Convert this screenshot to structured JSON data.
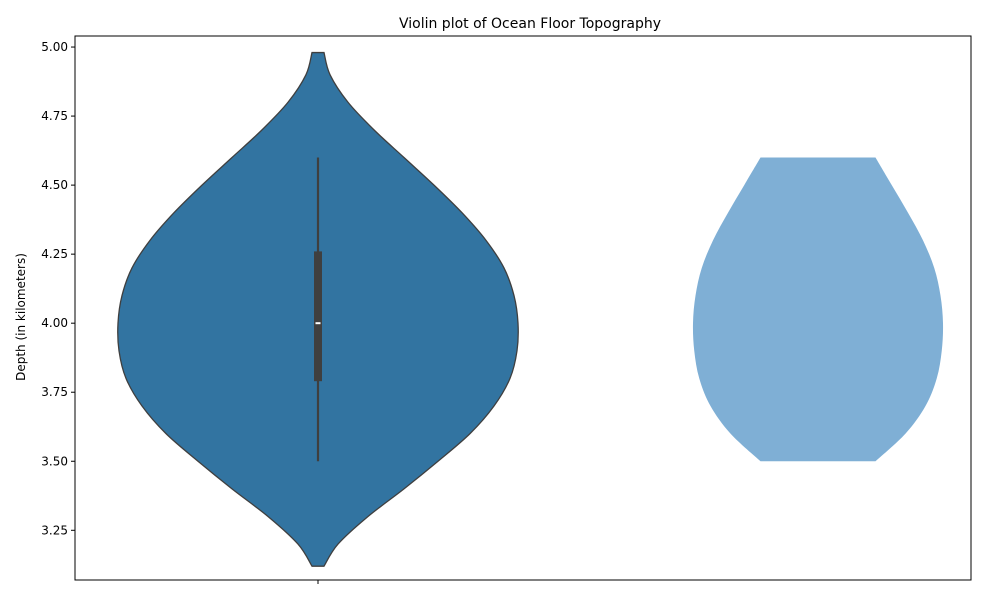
{
  "chart_data": {
    "type": "violin",
    "title": "Violin plot of Ocean Floor Topography",
    "xlabel": "",
    "ylabel": "Depth (in kilometers)",
    "ylim": [
      3.07,
      5.04
    ],
    "yticks": [
      3.25,
      3.5,
      3.75,
      4.0,
      4.25,
      4.5,
      4.75,
      5.0
    ],
    "ytick_labels": [
      "3.25",
      "3.50",
      "3.75",
      "4.00",
      "4.25",
      "4.50",
      "4.75",
      "5.00"
    ],
    "grid": false,
    "violins": [
      {
        "style": "seaborn",
        "fill": "#3274a1",
        "edge": "#3f3f3f",
        "min": 3.5,
        "q1": 3.79,
        "median": 4.0,
        "q3": 4.26,
        "max": 4.6,
        "kde_range": [
          3.12,
          4.98
        ],
        "profile": [
          [
            3.12,
            0.03
          ],
          [
            3.2,
            0.1
          ],
          [
            3.3,
            0.25
          ],
          [
            3.4,
            0.43
          ],
          [
            3.5,
            0.6
          ],
          [
            3.6,
            0.76
          ],
          [
            3.7,
            0.88
          ],
          [
            3.8,
            0.96
          ],
          [
            3.9,
            0.995
          ],
          [
            4.0,
            1.0
          ],
          [
            4.1,
            0.98
          ],
          [
            4.2,
            0.93
          ],
          [
            4.3,
            0.84
          ],
          [
            4.4,
            0.72
          ],
          [
            4.5,
            0.58
          ],
          [
            4.6,
            0.43
          ],
          [
            4.7,
            0.28
          ],
          [
            4.8,
            0.15
          ],
          [
            4.9,
            0.06
          ],
          [
            4.98,
            0.03
          ]
        ]
      },
      {
        "style": "matplotlib",
        "fill": "#7fafd5",
        "kde_range": [
          3.5,
          4.6
        ],
        "profile": [
          [
            3.5,
            0.46
          ],
          [
            3.6,
            0.7
          ],
          [
            3.7,
            0.86
          ],
          [
            3.8,
            0.95
          ],
          [
            3.9,
            0.99
          ],
          [
            4.0,
            1.0
          ],
          [
            4.1,
            0.98
          ],
          [
            4.2,
            0.93
          ],
          [
            4.3,
            0.84
          ],
          [
            4.4,
            0.72
          ],
          [
            4.5,
            0.59
          ],
          [
            4.6,
            0.46
          ]
        ]
      }
    ],
    "xticks": [
      ""
    ]
  }
}
